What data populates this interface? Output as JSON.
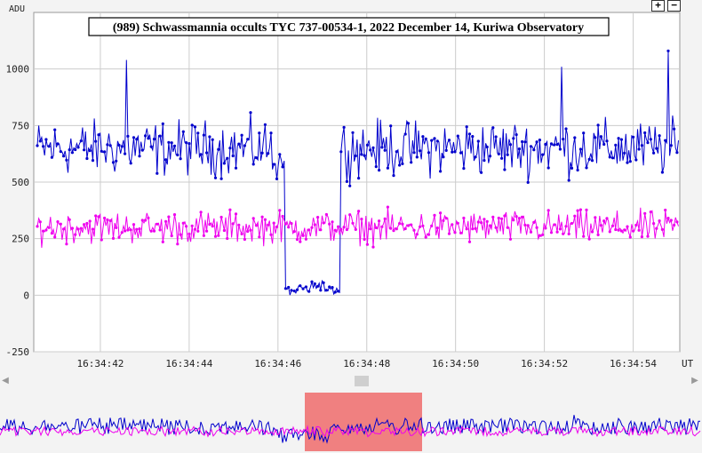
{
  "chart_data": {
    "type": "line",
    "title": "(989) Schwassmannia occults TYC 737-00534-1, 2022 December 14, Kuriwa Observatory",
    "ylabel": "ADU",
    "xlabel": "UT",
    "ylim": [
      -250,
      1250
    ],
    "yticks": [
      -250,
      0,
      250,
      500,
      750,
      1000
    ],
    "xticks": [
      "16:34:42",
      "16:34:44",
      "16:34:46",
      "16:34:48",
      "16:34:50",
      "16:34:52",
      "16:34:54"
    ],
    "grid": true,
    "x_range_seconds_after_16_34_41": [
      -0.5,
      14.05
    ],
    "series": [
      {
        "color": "#0000cc",
        "baseline": 650,
        "noise": 110,
        "event": {
          "start": "16:34:46.15",
          "end": "16:34:47.4",
          "level": 30
        },
        "peaks": [
          {
            "x": "16:34:42.6",
            "y": 1040
          },
          {
            "x": "16:34:52.4",
            "y": 1010
          },
          {
            "x": "16:34:54.8",
            "y": 1080
          }
        ]
      },
      {
        "color": "#ee00ee",
        "baseline": 300,
        "noise": 65
      }
    ],
    "overview_window": {
      "start": "16:34:41.5",
      "end": "16:34:55.0"
    }
  },
  "controls": {
    "zoom_in": "+",
    "zoom_out": "−",
    "left_arrow": "◀",
    "right_arrow": "▶"
  }
}
